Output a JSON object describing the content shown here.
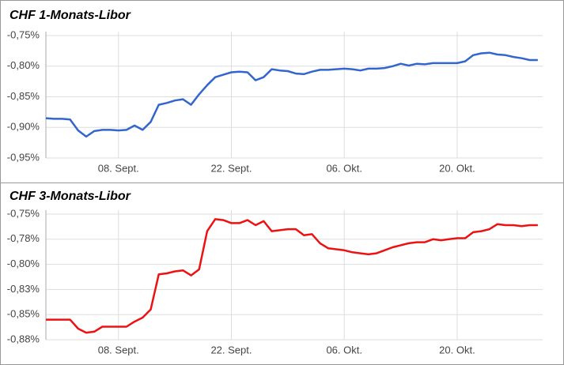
{
  "chart_data": [
    {
      "type": "line",
      "title": "CHF 1-Monats-Libor",
      "categories": [
        null,
        null,
        null,
        null,
        null,
        null,
        null,
        null,
        null,
        "08. Sept.",
        null,
        null,
        null,
        null,
        null,
        null,
        null,
        null,
        null,
        null,
        null,
        null,
        null,
        "22. Sept.",
        null,
        null,
        null,
        null,
        null,
        null,
        null,
        null,
        null,
        null,
        null,
        null,
        null,
        "06. Okt.",
        null,
        null,
        null,
        null,
        null,
        null,
        null,
        null,
        null,
        null,
        null,
        null,
        null,
        "20. Okt.",
        null,
        null,
        null,
        null,
        null,
        null,
        null,
        null,
        null,
        null
      ],
      "series": [
        {
          "name": "CHF 1-Monats-Libor",
          "color": "#3366cc",
          "values": [
            -0.885,
            -0.886,
            -0.886,
            -0.887,
            -0.905,
            -0.915,
            -0.906,
            -0.904,
            -0.904,
            -0.905,
            -0.904,
            -0.897,
            -0.904,
            -0.891,
            -0.863,
            -0.86,
            -0.856,
            -0.854,
            -0.863,
            -0.846,
            -0.831,
            -0.818,
            -0.814,
            -0.81,
            -0.809,
            -0.81,
            -0.823,
            -0.818,
            -0.805,
            -0.807,
            -0.808,
            -0.812,
            -0.813,
            -0.809,
            -0.806,
            -0.806,
            -0.805,
            -0.804,
            -0.805,
            -0.807,
            -0.804,
            -0.804,
            -0.803,
            -0.8,
            -0.796,
            -0.799,
            -0.796,
            -0.797,
            -0.795,
            -0.795,
            -0.795,
            -0.795,
            -0.792,
            -0.782,
            -0.779,
            -0.778,
            -0.781,
            -0.782,
            -0.785,
            -0.787,
            -0.79,
            -0.79
          ]
        }
      ],
      "ylim": [
        -0.95,
        -0.75
      ],
      "yticks": [
        {
          "value": -0.75,
          "label": "-0,75%"
        },
        {
          "value": -0.8,
          "label": "-0,80%"
        },
        {
          "value": -0.85,
          "label": "-0,85%"
        },
        {
          "value": -0.9,
          "label": "-0,90%"
        },
        {
          "value": -0.95,
          "label": "-0,95%"
        }
      ],
      "grid": true
    },
    {
      "type": "line",
      "title": "CHF 3-Monats-Libor",
      "categories": [
        null,
        null,
        null,
        null,
        null,
        null,
        null,
        null,
        null,
        "08. Sept.",
        null,
        null,
        null,
        null,
        null,
        null,
        null,
        null,
        null,
        null,
        null,
        null,
        null,
        "22. Sept.",
        null,
        null,
        null,
        null,
        null,
        null,
        null,
        null,
        null,
        null,
        null,
        null,
        null,
        "06. Okt.",
        null,
        null,
        null,
        null,
        null,
        null,
        null,
        null,
        null,
        null,
        null,
        null,
        null,
        "20. Okt.",
        null,
        null,
        null,
        null,
        null,
        null,
        null,
        null,
        null,
        null
      ],
      "series": [
        {
          "name": "CHF 3-Monats-Libor",
          "color": "#ee1111",
          "values": [
            -0.855,
            -0.855,
            -0.855,
            -0.855,
            -0.864,
            -0.868,
            -0.867,
            -0.862,
            -0.862,
            -0.862,
            -0.862,
            -0.857,
            -0.853,
            -0.845,
            -0.81,
            -0.809,
            -0.807,
            -0.806,
            -0.811,
            -0.805,
            -0.767,
            -0.755,
            -0.756,
            -0.759,
            -0.759,
            -0.756,
            -0.761,
            -0.757,
            -0.767,
            -0.766,
            -0.765,
            -0.765,
            -0.771,
            -0.77,
            -0.779,
            -0.784,
            -0.785,
            -0.786,
            -0.788,
            -0.789,
            -0.79,
            -0.789,
            -0.786,
            -0.783,
            -0.781,
            -0.779,
            -0.778,
            -0.778,
            -0.775,
            -0.776,
            -0.775,
            -0.774,
            -0.774,
            -0.768,
            -0.767,
            -0.765,
            -0.76,
            -0.761,
            -0.761,
            -0.762,
            -0.761,
            -0.761
          ]
        }
      ],
      "ylim": [
        -0.875,
        -0.75
      ],
      "yticks": [
        {
          "value": -0.75,
          "label": "-0,75%"
        },
        {
          "value": -0.775,
          "label": "-0,78%"
        },
        {
          "value": -0.8,
          "label": "-0,80%"
        },
        {
          "value": -0.825,
          "label": "-0,83%"
        },
        {
          "value": -0.85,
          "label": "-0,85%"
        },
        {
          "value": -0.875,
          "label": "-0,88%"
        }
      ],
      "grid": true
    }
  ]
}
